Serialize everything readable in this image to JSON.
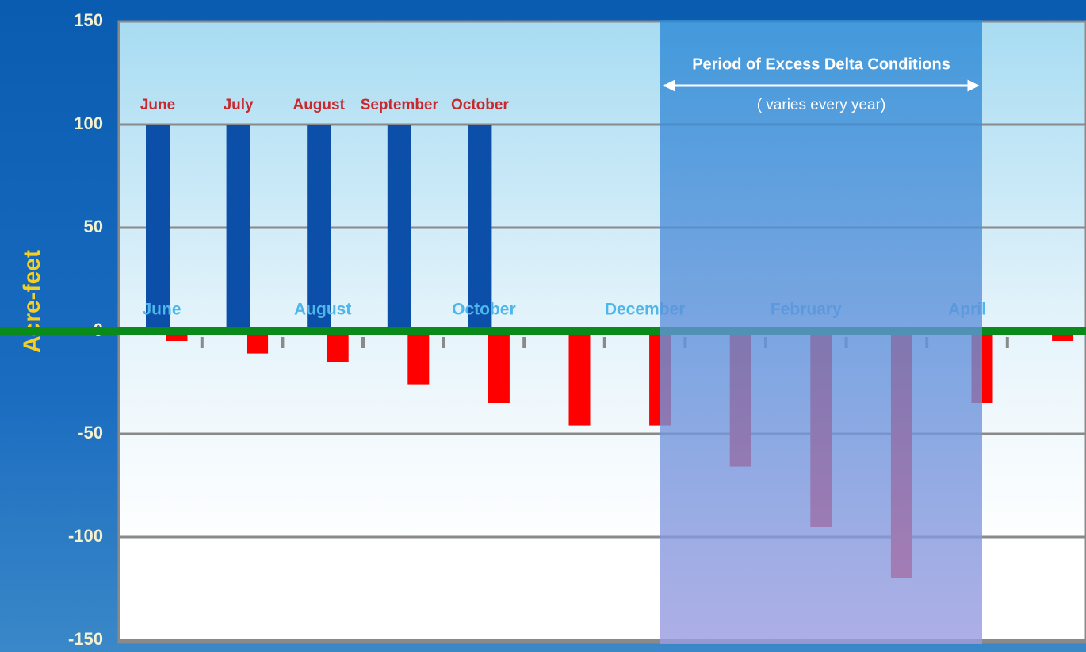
{
  "chart_data": {
    "type": "bar",
    "y_label": "Acre-feet",
    "categories": [
      "June",
      null,
      "August",
      null,
      "October",
      null,
      "December",
      null,
      "February",
      null,
      "April",
      null
    ],
    "series": [
      {
        "color": "#0b4fa8",
        "values": [
          100,
          100,
          100,
          100,
          100,
          null,
          null,
          null,
          null,
          null,
          null,
          null
        ],
        "bar_labels": [
          "June",
          "July",
          "August",
          "September",
          "October",
          null,
          null,
          null,
          null,
          null,
          null,
          null
        ]
      },
      {
        "color": "#ff0000",
        "values": [
          -5,
          -11,
          -15,
          -26,
          -35,
          -46,
          -46,
          -66,
          -95,
          -120,
          -35,
          -5
        ]
      }
    ],
    "ylim": [
      -150,
      150
    ],
    "yticks": [
      -150,
      -100,
      -50,
      0,
      50,
      100,
      150
    ],
    "grid": true,
    "annotation": {
      "title": "Period of Excess Delta Conditions",
      "subtitle": "( varies every year)"
    }
  }
}
